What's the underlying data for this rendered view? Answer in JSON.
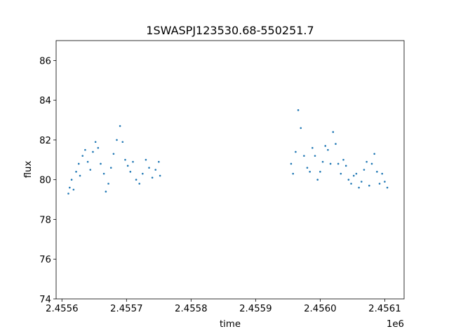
{
  "chart_data": {
    "type": "scatter",
    "title": "1SWASPJ123530.68-550251.7",
    "xlabel": "time",
    "ylabel": "flux",
    "x_offset_label": "1e6",
    "xlim": [
      2455591,
      2456130
    ],
    "ylim": [
      74,
      87
    ],
    "x_ticks": [
      2455600,
      2455700,
      2455800,
      2455900,
      2456000,
      2456100
    ],
    "x_tick_labels": [
      "2.4556",
      "2.4557",
      "2.4558",
      "2.4559",
      "2.4560",
      "2.4561"
    ],
    "y_ticks": [
      74,
      76,
      78,
      80,
      82,
      84,
      86
    ],
    "y_tick_labels": [
      "74",
      "76",
      "78",
      "80",
      "82",
      "84",
      "86"
    ],
    "grid": false,
    "marker_color": "#1f77b4",
    "series": [
      {
        "name": "",
        "x": [
          2455610,
          2455612,
          2455615,
          2455618,
          2455622,
          2455626,
          2455628,
          2455632,
          2455636,
          2455640,
          2455644,
          2455648,
          2455652,
          2455656,
          2455660,
          2455665,
          2455668,
          2455672,
          2455676,
          2455680,
          2455685,
          2455690,
          2455694,
          2455698,
          2455702,
          2455706,
          2455710,
          2455715,
          2455720,
          2455725,
          2455730,
          2455735,
          2455740,
          2455745,
          2455750,
          2455752,
          2455955,
          2455958,
          2455962,
          2455966,
          2455970,
          2455975,
          2455980,
          2455984,
          2455988,
          2455992,
          2455996,
          2456000,
          2456004,
          2456008,
          2456012,
          2456016,
          2456020,
          2456024,
          2456028,
          2456032,
          2456036,
          2456040,
          2456044,
          2456048,
          2456052,
          2456056,
          2456060,
          2456064,
          2456068,
          2456072,
          2456076,
          2456080,
          2456084,
          2456088,
          2456092,
          2456096,
          2456100,
          2456104
        ],
        "y": [
          79.3,
          79.6,
          80.0,
          79.5,
          80.4,
          80.8,
          80.2,
          81.2,
          81.5,
          80.9,
          80.5,
          81.4,
          81.9,
          81.6,
          80.8,
          80.3,
          79.4,
          79.8,
          80.6,
          81.3,
          82.0,
          82.7,
          81.9,
          81.0,
          80.7,
          80.4,
          80.9,
          80.0,
          79.8,
          80.3,
          81.0,
          80.6,
          80.1,
          80.5,
          80.9,
          80.2,
          80.8,
          80.3,
          81.4,
          83.5,
          82.6,
          81.2,
          80.6,
          80.4,
          81.6,
          81.2,
          80.0,
          80.4,
          80.9,
          81.7,
          81.5,
          80.8,
          82.4,
          81.8,
          80.8,
          80.3,
          81.0,
          80.7,
          80.0,
          79.8,
          80.2,
          80.3,
          79.6,
          79.9,
          80.5,
          80.9,
          79.7,
          80.8,
          81.3,
          80.4,
          79.8,
          80.3,
          79.9,
          79.6
        ]
      }
    ]
  }
}
